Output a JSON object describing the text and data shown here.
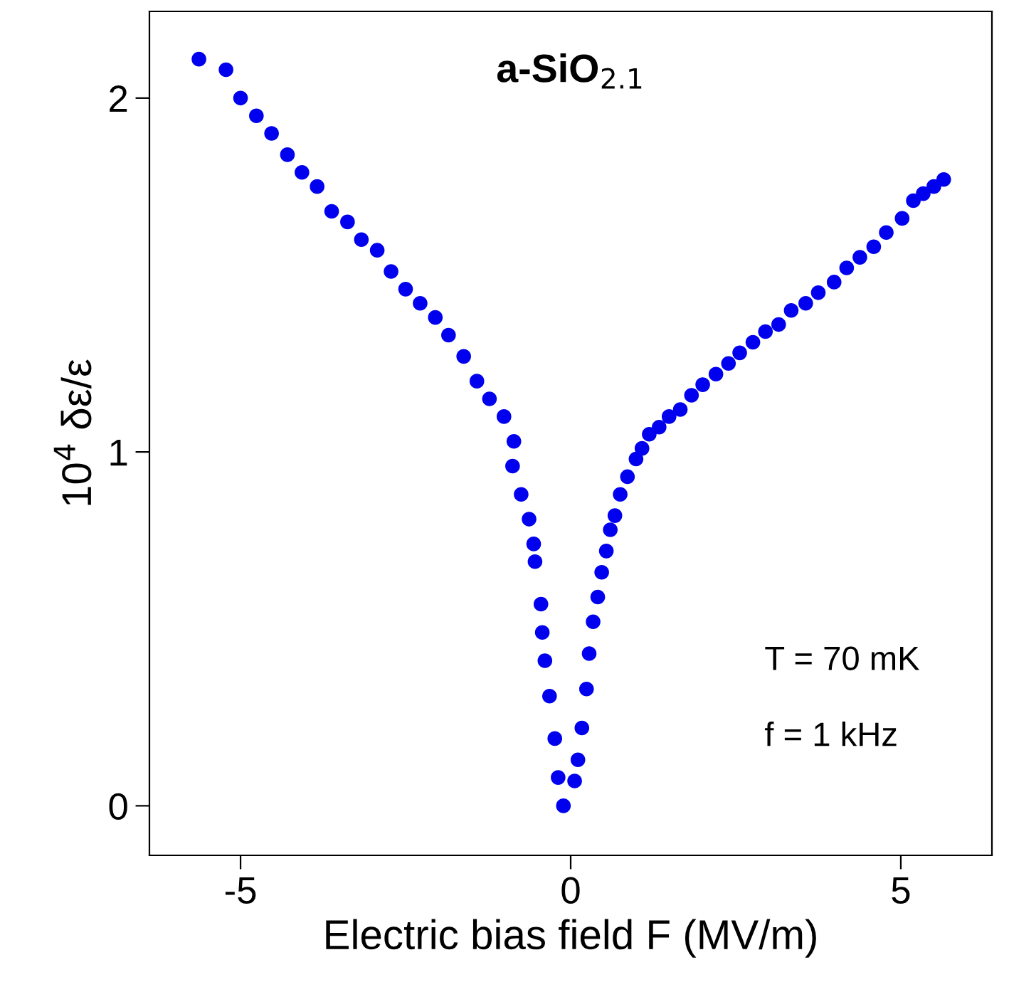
{
  "chart_data": {
    "type": "scatter",
    "title": "a-SiO$_{2.1}$",
    "xlabel": "Electric bias field F (MV/m)",
    "ylabel": "10$^{4}$ δε/ε",
    "annotations": [
      "T = 70 mK",
      "f = 1 kHz"
    ],
    "x": [
      -5.63,
      -5.22,
      -5.0,
      -4.76,
      -4.53,
      -4.29,
      -4.07,
      -3.84,
      -3.62,
      -3.38,
      -3.17,
      -2.93,
      -2.72,
      -2.5,
      -2.28,
      -2.05,
      -1.85,
      -1.62,
      -1.42,
      -1.23,
      -1.01,
      -0.86,
      -0.88,
      -0.75,
      -0.63,
      -0.56,
      -0.54,
      -0.45,
      -0.43,
      -0.39,
      -0.32,
      -0.24,
      -0.19,
      -0.11,
      0.06,
      0.11,
      0.17,
      0.24,
      0.28,
      0.34,
      0.41,
      0.47,
      0.54,
      0.6,
      0.67,
      0.75,
      0.86,
      0.99,
      1.08,
      1.19,
      1.34,
      1.49,
      1.66,
      1.83,
      2.0,
      2.2,
      2.39,
      2.56,
      2.76,
      2.95,
      3.15,
      3.34,
      3.56,
      3.75,
      3.99,
      4.18,
      4.38,
      4.59,
      4.78,
      5.02,
      5.19,
      5.34,
      5.5,
      5.65
    ],
    "series": [
      {
        "color": "#0000ee",
        "values": [
          2.11,
          2.08,
          2.0,
          1.95,
          1.9,
          1.84,
          1.79,
          1.75,
          1.68,
          1.65,
          1.6,
          1.57,
          1.51,
          1.46,
          1.42,
          1.38,
          1.33,
          1.27,
          1.2,
          1.15,
          1.1,
          1.03,
          0.96,
          0.88,
          0.81,
          0.74,
          0.69,
          0.57,
          0.49,
          0.41,
          0.31,
          0.19,
          0.08,
          0.0,
          0.07,
          0.13,
          0.22,
          0.33,
          0.43,
          0.52,
          0.59,
          0.66,
          0.72,
          0.78,
          0.82,
          0.88,
          0.93,
          0.98,
          1.01,
          1.05,
          1.07,
          1.1,
          1.12,
          1.16,
          1.19,
          1.22,
          1.25,
          1.28,
          1.31,
          1.34,
          1.36,
          1.4,
          1.42,
          1.45,
          1.48,
          1.52,
          1.55,
          1.58,
          1.62,
          1.66,
          1.71,
          1.73,
          1.75,
          1.77
        ]
      }
    ],
    "marker": "circle",
    "grid": false,
    "xlim": [
      -6.38,
      6.38
    ],
    "ylim": [
      -0.14,
      2.245
    ],
    "xticks": [
      {
        "value": -5,
        "label": "-5"
      },
      0,
      5
    ],
    "yticks": [
      0,
      1,
      2
    ]
  }
}
